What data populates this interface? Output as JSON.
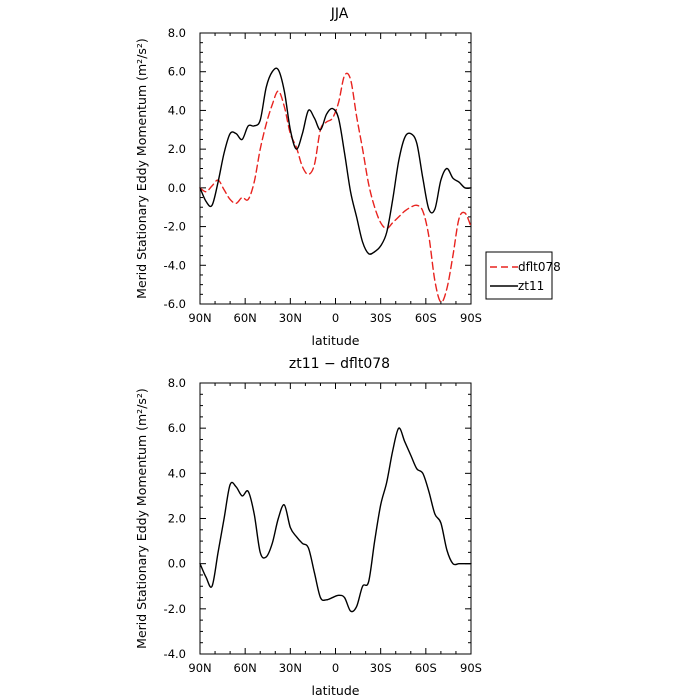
{
  "chart_data": [
    {
      "type": "line",
      "title": "JJA",
      "xlabel": "latitude",
      "ylabel": "Merid Stationary Eddy Momentum (m²/s²)",
      "x_ticks": [
        90,
        60,
        30,
        0,
        -30,
        -60,
        -90
      ],
      "x_tick_labels": [
        "90N",
        "60N",
        "30N",
        "0",
        "30S",
        "60S",
        "90S"
      ],
      "xlim": [
        90,
        -90
      ],
      "y_ticks": [
        -6,
        -4,
        -2,
        0,
        2,
        4,
        6,
        8
      ],
      "y_tick_labels": [
        "-6.0",
        "-4.0",
        "-2.0",
        "0.0",
        "2.0",
        "4.0",
        "6.0",
        "8.0"
      ],
      "ylim": [
        -6,
        8
      ],
      "legend_position": "right, outside plot",
      "series": [
        {
          "name": "dflt078",
          "color": "#e8231f",
          "dash": "dashed",
          "x": [
            90,
            86,
            82,
            78,
            74,
            70,
            66,
            62,
            58,
            54,
            50,
            46,
            42,
            38,
            34,
            30,
            26,
            22,
            18,
            14,
            10,
            6,
            2,
            -2,
            -6,
            -10,
            -14,
            -18,
            -22,
            -26,
            -30,
            -34,
            -38,
            -42,
            -46,
            -50,
            -54,
            -58,
            -62,
            -66,
            -70,
            -74,
            -78,
            -82,
            -86,
            -90
          ],
          "y": [
            0.0,
            -0.2,
            0.1,
            0.4,
            -0.1,
            -0.6,
            -0.8,
            -0.5,
            -0.6,
            0.3,
            2.0,
            3.3,
            4.3,
            5.0,
            4.2,
            2.8,
            2.1,
            1.1,
            0.7,
            1.2,
            3.0,
            3.4,
            3.6,
            4.4,
            5.8,
            5.6,
            3.7,
            2.0,
            0.2,
            -1.0,
            -1.8,
            -2.1,
            -1.8,
            -1.5,
            -1.2,
            -1.0,
            -0.9,
            -1.2,
            -2.5,
            -4.8,
            -5.9,
            -5.2,
            -3.5,
            -1.6,
            -1.3,
            -2.0
          ]
        },
        {
          "name": "zt11",
          "color": "#000000",
          "dash": "solid",
          "x": [
            90,
            86,
            82,
            78,
            74,
            70,
            66,
            62,
            58,
            54,
            50,
            46,
            42,
            38,
            34,
            30,
            26,
            22,
            18,
            14,
            10,
            6,
            2,
            -2,
            -6,
            -10,
            -14,
            -18,
            -22,
            -26,
            -30,
            -34,
            -38,
            -42,
            -46,
            -50,
            -54,
            -58,
            -62,
            -66,
            -70,
            -74,
            -78,
            -82,
            -86,
            -90
          ],
          "y": [
            0.0,
            -0.7,
            -0.9,
            0.3,
            1.8,
            2.8,
            2.8,
            2.5,
            3.2,
            3.2,
            3.5,
            5.2,
            6.0,
            6.1,
            5.0,
            3.0,
            2.0,
            2.8,
            4.0,
            3.6,
            3.0,
            3.8,
            4.1,
            3.6,
            1.8,
            -0.2,
            -1.5,
            -2.8,
            -3.4,
            -3.3,
            -3.0,
            -2.3,
            -0.6,
            1.4,
            2.6,
            2.8,
            2.3,
            0.5,
            -1.1,
            -1.1,
            0.4,
            1.0,
            0.5,
            0.3,
            0.0,
            0.0
          ]
        }
      ]
    },
    {
      "type": "line",
      "title": "zt11 − dflt078",
      "xlabel": "latitude",
      "ylabel": "Merid Stationary Eddy Momentum (m²/s²)",
      "x_ticks": [
        90,
        60,
        30,
        0,
        -30,
        -60,
        -90
      ],
      "x_tick_labels": [
        "90N",
        "60N",
        "30N",
        "0",
        "30S",
        "60S",
        "90S"
      ],
      "xlim": [
        90,
        -90
      ],
      "y_ticks": [
        -4,
        -2,
        0,
        2,
        4,
        6,
        8
      ],
      "y_tick_labels": [
        "-4.0",
        "-2.0",
        "0.0",
        "2.0",
        "4.0",
        "6.0",
        "8.0"
      ],
      "ylim": [
        -4,
        8
      ],
      "legend_position": "none",
      "series": [
        {
          "color": "#000000",
          "dash": "solid",
          "x": [
            90,
            86,
            82,
            78,
            74,
            70,
            66,
            62,
            58,
            54,
            50,
            46,
            42,
            38,
            34,
            30,
            26,
            22,
            18,
            14,
            10,
            6,
            2,
            -2,
            -6,
            -10,
            -14,
            -18,
            -22,
            -26,
            -30,
            -34,
            -38,
            -42,
            -46,
            -50,
            -54,
            -58,
            -62,
            -66,
            -70,
            -74,
            -78,
            -82,
            -86,
            -90
          ],
          "y": [
            0.0,
            -0.6,
            -1.0,
            0.5,
            2.0,
            3.5,
            3.4,
            3.0,
            3.2,
            2.2,
            0.5,
            0.3,
            0.9,
            2.0,
            2.6,
            1.6,
            1.2,
            0.9,
            0.7,
            -0.4,
            -1.5,
            -1.6,
            -1.5,
            -1.4,
            -1.5,
            -2.1,
            -1.9,
            -1.0,
            -0.8,
            1.0,
            2.6,
            3.6,
            5.0,
            6.0,
            5.4,
            4.8,
            4.2,
            4.0,
            3.2,
            2.2,
            1.8,
            0.6,
            0.0,
            0.0,
            0.0,
            0.0
          ]
        }
      ]
    }
  ]
}
